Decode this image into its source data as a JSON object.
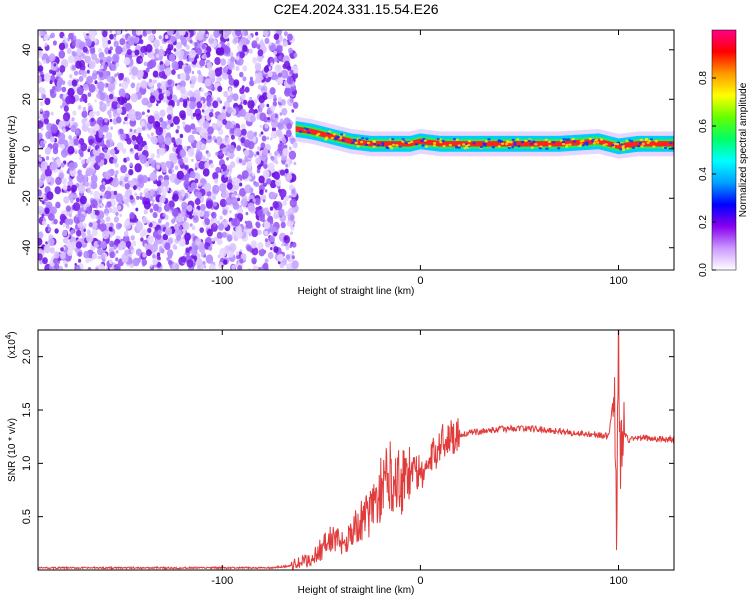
{
  "title": "C2E4.2024.331.15.54.E26",
  "chart_data": [
    {
      "type": "heatmap",
      "xlabel": "Height of straight line (km)",
      "ylabel": "Frequency (Hz)",
      "xlim": [
        -193,
        128
      ],
      "ylim": [
        -49,
        48
      ],
      "x_ticks": [
        -100,
        0,
        100
      ],
      "y_ticks": [
        -40,
        -20,
        0,
        20,
        40
      ],
      "colorbar": {
        "label": "Normalized spectral amplitude",
        "range": [
          0,
          1
        ],
        "ticks": [
          0.0,
          0.2,
          0.4,
          0.6,
          0.8
        ],
        "colors": [
          "#ffffff",
          "#cc99ff",
          "#8800ee",
          "#0000ff",
          "#00a0ff",
          "#00ffff",
          "#00ff66",
          "#66ff00",
          "#ffff00",
          "#ff9900",
          "#ff0000",
          "#ff0088"
        ]
      },
      "noise_region_x": [
        -193,
        -63
      ],
      "signal_ridge": {
        "x": [
          -63,
          -55,
          -45,
          -35,
          -25,
          -15,
          -5,
          0,
          10,
          30,
          50,
          70,
          90,
          100,
          110,
          128
        ],
        "freq_hz": [
          8,
          7,
          5,
          3,
          2,
          2,
          2,
          3,
          2,
          2,
          2,
          2,
          3,
          1,
          2,
          2
        ]
      }
    },
    {
      "type": "line",
      "xlabel": "Height of straight line (km)",
      "ylabel": "SNR (10 * v/v)",
      "scale_label": "(x10",
      "scale_exp": "4",
      "scale_close": ")",
      "xlim": [
        -193,
        128
      ],
      "ylim": [
        0.0,
        2.25
      ],
      "x_ticks": [
        -100,
        0,
        100
      ],
      "y_ticks": [
        0.5,
        1.0,
        1.5,
        2.0
      ],
      "color": "#e03c3c",
      "series": [
        {
          "x": [
            -193,
            -150,
            -100,
            -75,
            -65,
            -55,
            -50,
            -45,
            -40,
            -35,
            -30,
            -25,
            -20,
            -15,
            -10,
            -5,
            0,
            5,
            10,
            15,
            20,
            30,
            40,
            50,
            60,
            70,
            80,
            90,
            95,
            98,
            99,
            100,
            101,
            102,
            105,
            110,
            120,
            128
          ],
          "values": [
            0.02,
            0.02,
            0.02,
            0.02,
            0.04,
            0.1,
            0.2,
            0.3,
            0.25,
            0.35,
            0.45,
            0.55,
            0.75,
            0.9,
            0.85,
            0.95,
            0.9,
            1.0,
            1.2,
            1.25,
            1.27,
            1.3,
            1.32,
            1.33,
            1.32,
            1.3,
            1.28,
            1.27,
            1.25,
            1.7,
            0.2,
            2.25,
            1.0,
            1.3,
            1.22,
            1.24,
            1.23,
            1.22
          ]
        }
      ]
    }
  ]
}
